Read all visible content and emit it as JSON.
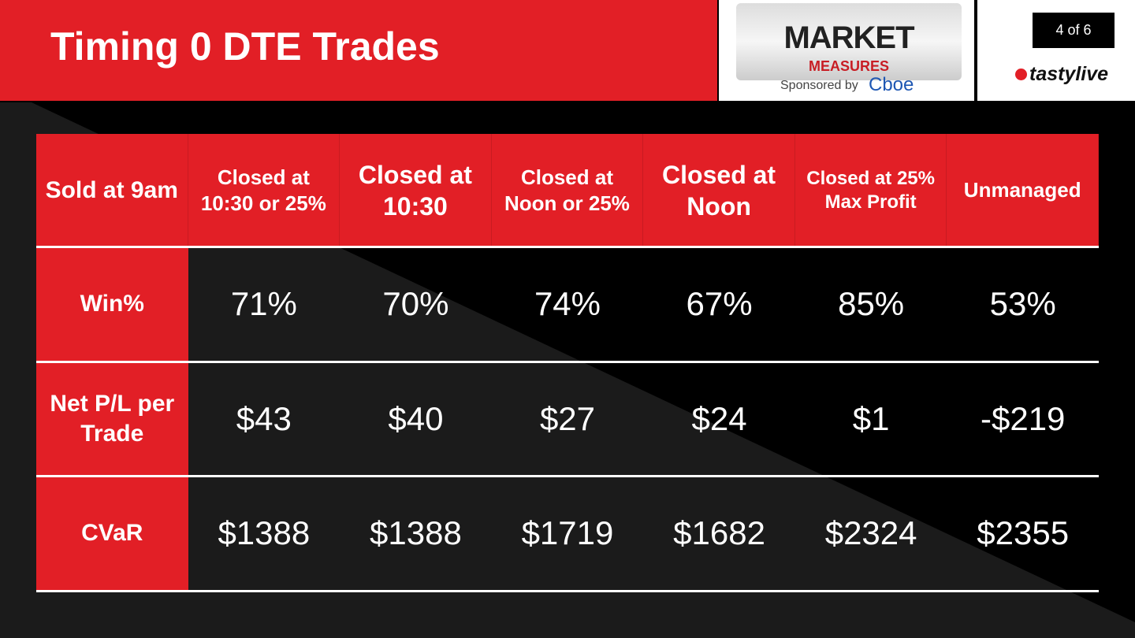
{
  "header": {
    "title": "Timing 0 DTE Trades",
    "logo": {
      "line1": "MARKET",
      "line2": "MEASURES",
      "sponsor": "Sponsored by",
      "sponsor_brand": "Cboe"
    },
    "page": "4 of 6",
    "brand": "tastylive"
  },
  "table": {
    "columns": [
      "Sold at 9am",
      "Closed at 10:30 or 25%",
      "Closed at 10:30",
      "Closed at Noon or 25%",
      "Closed at Noon",
      "Closed at 25% Max Profit",
      "Unmanaged"
    ],
    "rows": [
      [
        "Win%",
        "71%",
        "70%",
        "74%",
        "67%",
        "85%",
        "53%"
      ],
      [
        "Net P/L per Trade",
        "$43",
        "$40",
        "$27",
        "$24",
        "$1",
        "-$219"
      ],
      [
        "CVaR",
        "$1388",
        "$1388",
        "$1719",
        "$1682",
        "$2324",
        "$2355"
      ]
    ]
  }
}
